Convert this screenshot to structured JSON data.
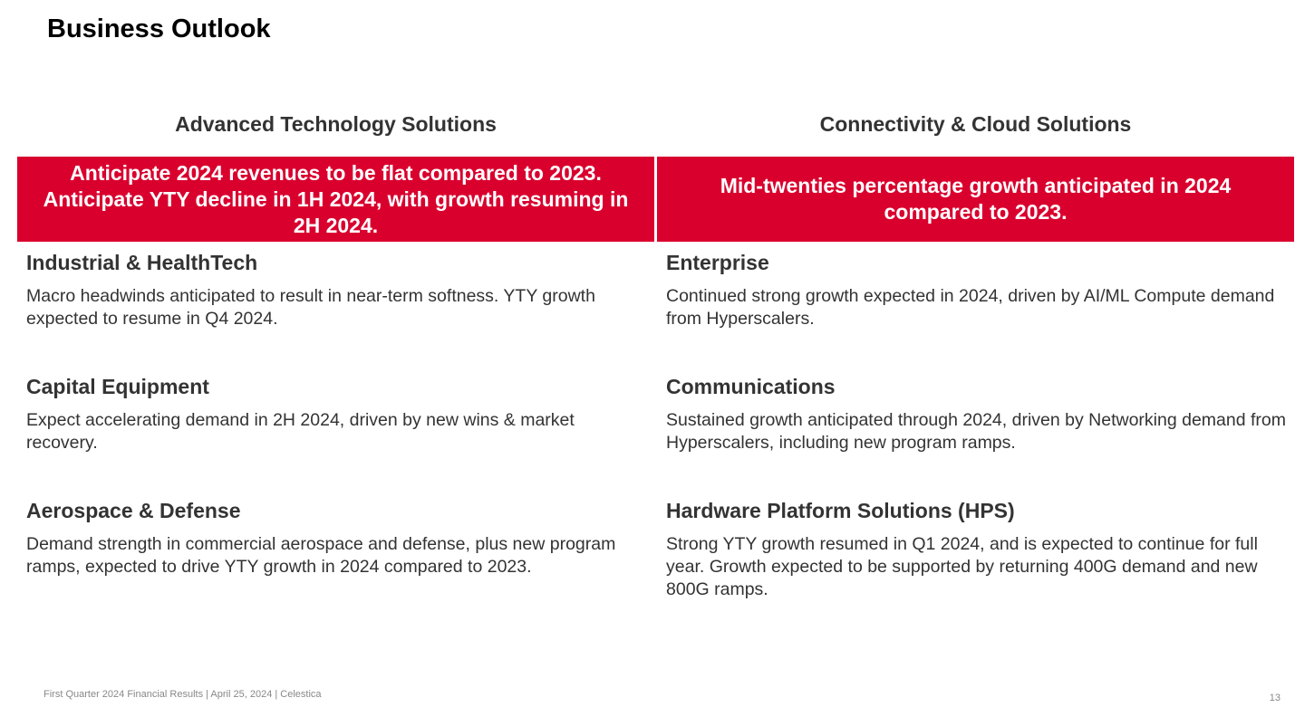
{
  "page": {
    "title": "Business Outlook"
  },
  "columns": [
    {
      "heading": "Advanced Technology Solutions",
      "banner": "Anticipate 2024 revenues to be flat compared to 2023. Anticipate YTY decline in 1H 2024, with growth resuming in 2H 2024.",
      "segments": [
        {
          "name": "Industrial & HealthTech",
          "desc": "Macro headwinds anticipated to result in near-term softness. YTY growth expected to resume in Q4 2024."
        },
        {
          "name": "Capital Equipment",
          "desc": "Expect accelerating demand in 2H 2024, driven by new wins & market recovery."
        },
        {
          "name": "Aerospace & Defense",
          "desc": "Demand strength in commercial aerospace and defense, plus new program ramps, expected to drive YTY growth in 2024 compared to 2023."
        }
      ]
    },
    {
      "heading": "Connectivity & Cloud Solutions",
      "banner": "Mid-twenties percentage growth anticipated in 2024 compared to 2023.",
      "segments": [
        {
          "name": "Enterprise",
          "desc": "Continued strong growth expected in 2024, driven by AI/ML Compute demand from Hyperscalers."
        },
        {
          "name": "Communications",
          "desc": "Sustained growth anticipated through 2024, driven by Networking demand from Hyperscalers, including new program ramps."
        },
        {
          "name": "Hardware Platform Solutions (HPS)",
          "desc": "Strong YTY growth resumed in Q1 2024, and is expected to continue for full year. Growth expected to be supported by returning 400G demand and new 800G ramps."
        }
      ]
    }
  ],
  "footer": {
    "text": "First Quarter 2024 Financial Results |  April 25, 2024  |  Celestica",
    "page_number": "13"
  },
  "colors": {
    "banner": "#D9002E",
    "text": "#333333",
    "footer": "#888888"
  }
}
